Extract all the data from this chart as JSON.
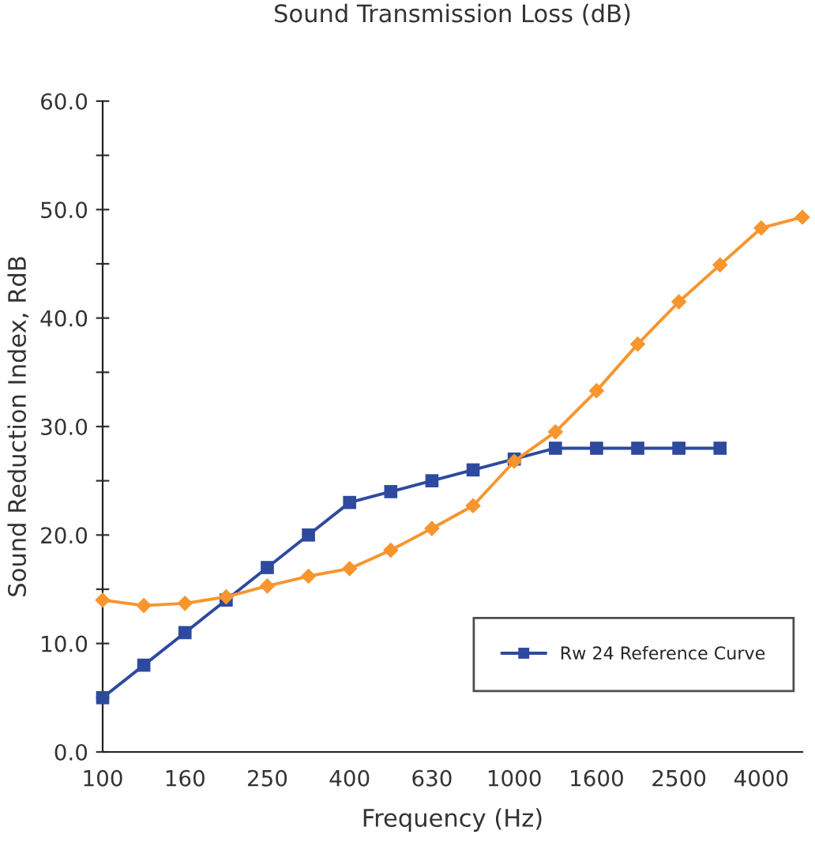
{
  "chart_data": {
    "type": "line",
    "title": "Sound Transmission Loss (dB)",
    "xlabel": "Frequency (Hz)",
    "ylabel": "Sound Reduction Index, RdB",
    "categories": [
      "100",
      null,
      "160",
      null,
      "250",
      null,
      "400",
      null,
      "630",
      null,
      "1000",
      null,
      "1600",
      null,
      "2500",
      null,
      "4000",
      null
    ],
    "series": [
      {
        "color": "#f7952f",
        "marker": "diamond",
        "values": [
          14.0,
          13.5,
          13.7,
          14.3,
          15.3,
          16.2,
          16.9,
          18.6,
          20.6,
          22.7,
          26.8,
          29.5,
          33.3,
          37.6,
          41.5,
          44.9,
          48.3,
          49.3
        ]
      },
      {
        "name": "Rw 24 Reference Curve",
        "color": "#2e4a9e",
        "marker": "square",
        "values": [
          5,
          8,
          11,
          14,
          17,
          20,
          23,
          24,
          25,
          26,
          27,
          28,
          28,
          28,
          28,
          28,
          null,
          null
        ]
      }
    ],
    "ylim": [
      0,
      60
    ],
    "yticks": [
      {
        "value": 0,
        "label": "0.0"
      },
      {
        "value": 5,
        "label": null
      },
      {
        "value": 10,
        "label": "10.0"
      },
      {
        "value": 15,
        "label": null
      },
      {
        "value": 20,
        "label": "20.0"
      },
      {
        "value": 25,
        "label": null
      },
      {
        "value": 30,
        "label": "30.0"
      },
      {
        "value": 35,
        "label": null
      },
      {
        "value": 40,
        "label": "40.0"
      },
      {
        "value": 45,
        "label": null
      },
      {
        "value": 50,
        "label": "50.0"
      },
      {
        "value": 55,
        "label": null
      },
      {
        "value": 60,
        "label": "60.0"
      }
    ],
    "grid": false,
    "legend": "bottom right",
    "line_style": "solid"
  }
}
